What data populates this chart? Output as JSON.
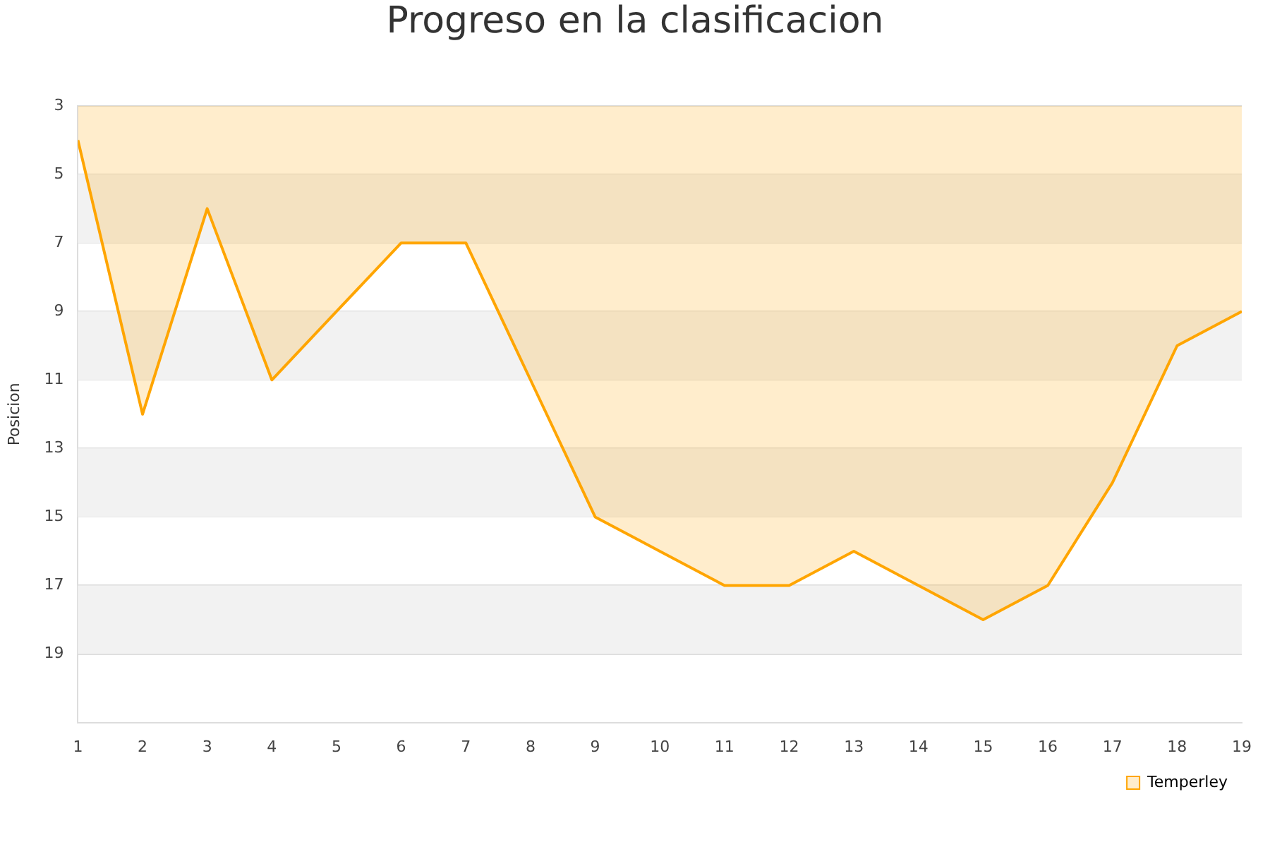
{
  "chart_data": {
    "type": "area",
    "title": "Progreso en la clasificacion",
    "ylabel": "Posicion",
    "x": [
      1,
      2,
      3,
      4,
      5,
      6,
      7,
      8,
      9,
      10,
      11,
      12,
      13,
      14,
      15,
      16,
      17,
      18,
      19
    ],
    "series": [
      {
        "name": "Temperley",
        "color": "#ffa500",
        "values": [
          4,
          12,
          6,
          11,
          9,
          7,
          7,
          11,
          15,
          16,
          17,
          17,
          16,
          17,
          18,
          17,
          14,
          10,
          9
        ]
      }
    ],
    "xlim": [
      1,
      19
    ],
    "xticks": [
      1,
      2,
      3,
      4,
      5,
      6,
      7,
      8,
      9,
      10,
      11,
      12,
      13,
      14,
      15,
      16,
      17,
      18,
      19
    ],
    "ylim": [
      21,
      3
    ],
    "yticks": [
      3,
      5,
      7,
      9,
      11,
      13,
      15,
      17,
      19
    ],
    "bands": [
      {
        "axis": "y",
        "from": 5,
        "to": 7,
        "color": "#f2f2f2"
      },
      {
        "axis": "y",
        "from": 9,
        "to": 11,
        "color": "#f2f2f2"
      },
      {
        "axis": "y",
        "from": 13,
        "to": 15,
        "color": "#f2f2f2"
      },
      {
        "axis": "y",
        "from": 17,
        "to": 19,
        "color": "#f2f2f2"
      }
    ],
    "grid": "y",
    "legend": "bottom right",
    "marker": "none",
    "line_style": "solid"
  }
}
